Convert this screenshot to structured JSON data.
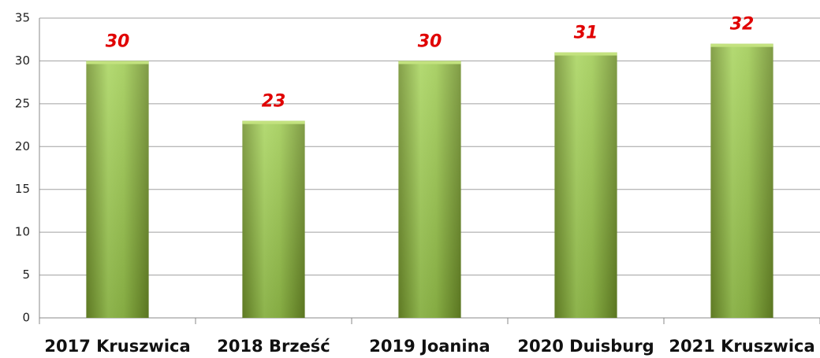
{
  "chart_data": {
    "type": "bar",
    "categories": [
      "2017 Kruszwica",
      "2018 Brześć",
      "2019 Joanina",
      "2020 Duisburg",
      "2021 Kruszwica"
    ],
    "values": [
      30,
      23,
      30,
      31,
      32
    ],
    "color": "#8fbe3a",
    "ylim": [
      0,
      35
    ],
    "yticks": [
      0,
      5,
      10,
      15,
      20,
      25,
      30,
      35
    ],
    "grid": true
  }
}
